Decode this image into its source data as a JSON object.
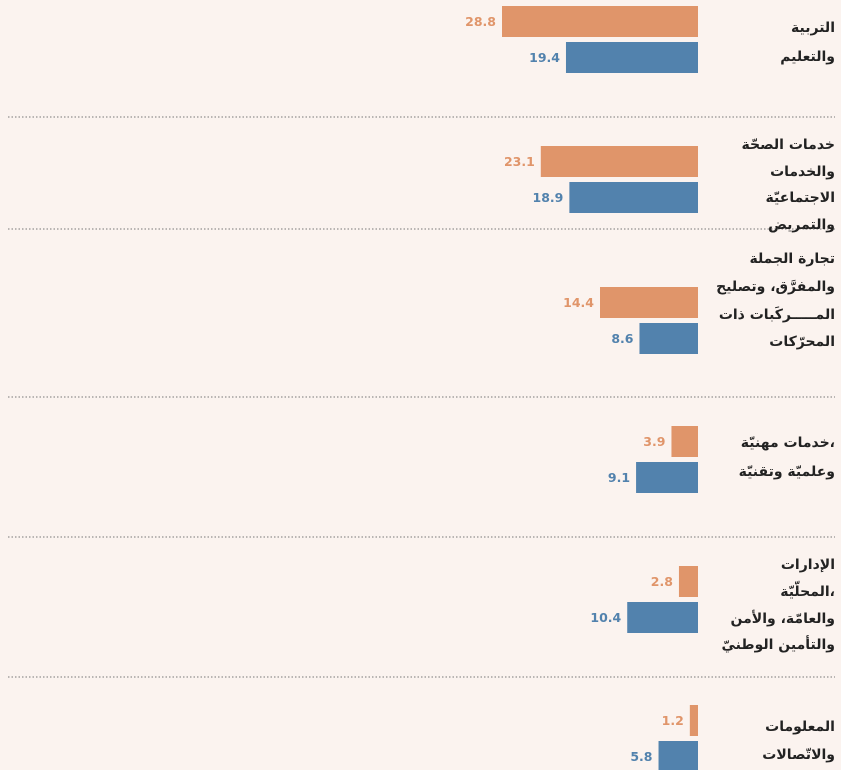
{
  "chart_data": {
    "type": "bar",
    "orientation": "horizontal",
    "categories": [
      [
        "التربية",
        "والتعليم"
      ],
      [
        "خدمات الصحّة",
        "والخدمات",
        "الاجتماعيّة",
        "والتمريض"
      ],
      [
        "تجارة الجملة",
        "والمفرَّق، وتصليح",
        "المـــــركَبات ذات",
        "المحرّكات"
      ],
      [
        "خدمات مهنيّة،",
        "وعلميّة وتقنيّة"
      ],
      [
        "الإدارات",
        "المحلّيّة،",
        "والعامّة، والأمن",
        "والتأمين الوطنيّ"
      ],
      [
        "المعلومات",
        "والاتّصالات"
      ]
    ],
    "series": [
      {
        "color": "#e0956a",
        "values": [
          28.8,
          23.1,
          14.4,
          3.9,
          2.8,
          1.2
        ]
      },
      {
        "color": "#5282ad",
        "values": [
          19.4,
          18.9,
          8.6,
          9.1,
          10.4,
          5.8
        ]
      }
    ]
  }
}
